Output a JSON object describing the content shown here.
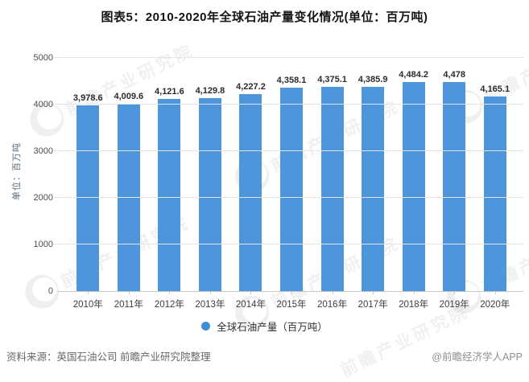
{
  "title": "图表5：2010-2020年全球石油产量变化情况(单位：百万吨)",
  "y_axis_title": "单位：百万吨",
  "legend": {
    "label": "全球石油产量（百万吨）",
    "color": "#3e8ed8"
  },
  "footer": {
    "source": "资料来源：英国石油公司 前瞻产业研究院整理",
    "credit": "@前瞻经济学人APP"
  },
  "watermark": {
    "text": "前瞻产业研究院"
  },
  "colors": {
    "bar": "#4d96db",
    "gridline": "#e4e4e4"
  },
  "chart_data": {
    "type": "bar",
    "title": "图表5：2010-2020年全球石油产量变化情况(单位：百万吨)",
    "categories": [
      "2010年",
      "2011年",
      "2012年",
      "2013年",
      "2014年",
      "2015年",
      "2016年",
      "2017年",
      "2018年",
      "2019年",
      "2020年"
    ],
    "values": [
      3978.6,
      4009.6,
      4121.6,
      4129.8,
      4227.2,
      4358.1,
      4375.1,
      4385.9,
      4484.2,
      4478,
      4165.1
    ],
    "labels": [
      "3,978.6",
      "4,009.6",
      "4,121.6",
      "4,129.8",
      "4,227.2",
      "4,358.1",
      "4,375.1",
      "4,385.9",
      "4,484.2",
      "4,478",
      "4,165.1"
    ],
    "xlabel": "",
    "ylabel": "单位：百万吨",
    "ylim": [
      0,
      5000
    ],
    "y_ticks": [
      0,
      1000,
      2000,
      3000,
      4000,
      5000
    ],
    "grid": true,
    "legend_position": "bottom"
  }
}
